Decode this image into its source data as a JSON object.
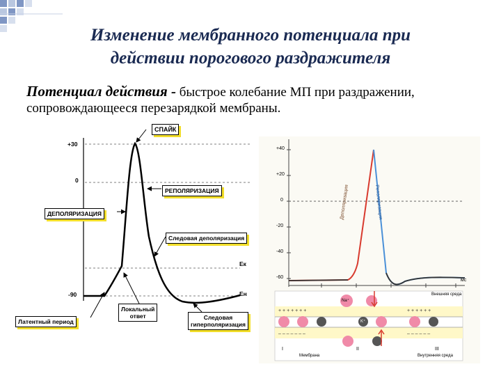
{
  "slide": {
    "title_line1": "Изменение мембранного потенциала при",
    "title_line2": "действии порогового раздражителя",
    "intro_term": "Потенциал действия -",
    "intro_rest": " быстрое колебание МП при раздражении, сопровождающееся перезарядкой мембраны."
  },
  "left_diagram": {
    "y_ticks": [
      "+30",
      "0",
      "-90"
    ],
    "level_labels": [
      "Eк",
      "Eн"
    ],
    "labels": {
      "spike": "СПАЙК",
      "repolarization": "РЕПОЛЯРИЗАЦИЯ",
      "depolarization": "ДЕПОЛЯРИЗАЦИЯ",
      "trace_depolarization": "Следовая деполяризация",
      "latent_period": "Латентный период",
      "local_response_1": "Локальный",
      "local_response_2": "ответ",
      "trace_hyper_1": "Следовая",
      "trace_hyper_2": "гиперполяризация"
    }
  },
  "right_diagram": {
    "y_ticks": [
      "+40",
      "+20",
      "0",
      "-20",
      "-40",
      "-60"
    ],
    "x_unit": "мс",
    "trace_labels": [
      "Деполяризация",
      "Реполяризация"
    ],
    "ion_labels": [
      "Na⁺",
      "K⁺"
    ],
    "panel_labels": [
      "Внешняя среда",
      "Мембрана",
      "Внутренняя среда"
    ],
    "numerals": [
      "I",
      "II",
      "III"
    ]
  }
}
